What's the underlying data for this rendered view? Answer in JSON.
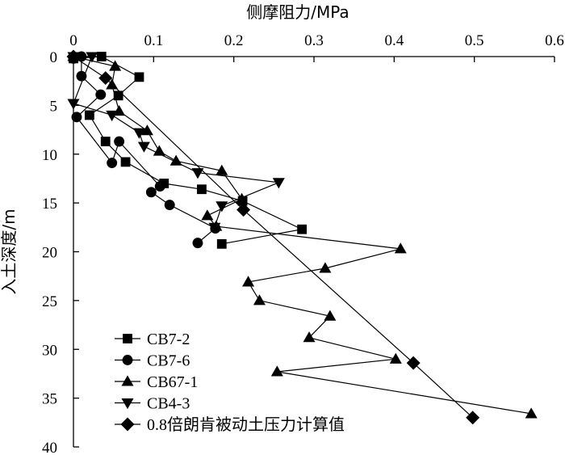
{
  "chart_data": {
    "type": "line",
    "title": "",
    "xlabel": "侧摩阻力/MPa",
    "ylabel": "入土深度/m",
    "xlim": [
      0,
      0.6
    ],
    "ylim": [
      0,
      40
    ],
    "y_inverted": true,
    "x_ticks": [
      "0",
      "0.1",
      "0.2",
      "0.3",
      "0.4",
      "0.5",
      "0.6"
    ],
    "x_tick_values": [
      0,
      0.1,
      0.2,
      0.3,
      0.4,
      0.5,
      0.6
    ],
    "y_ticks": [
      "0",
      "5",
      "10",
      "15",
      "20",
      "25",
      "30",
      "35",
      "40"
    ],
    "y_tick_values": [
      0,
      5,
      10,
      15,
      20,
      25,
      30,
      35,
      40
    ],
    "x_axis_position": "top",
    "legend_position": "bottom-left",
    "series": [
      {
        "name": "CB7-2",
        "marker": "square",
        "points": [
          [
            0.0,
            0.2
          ],
          [
            0.035,
            0.0
          ],
          [
            0.082,
            2.1
          ],
          [
            0.056,
            4.0
          ],
          [
            0.02,
            6.0
          ],
          [
            0.04,
            8.7
          ],
          [
            0.065,
            10.8
          ],
          [
            0.113,
            13.0
          ],
          [
            0.16,
            13.6
          ],
          [
            0.211,
            14.8
          ],
          [
            0.285,
            17.7
          ],
          [
            0.185,
            19.2
          ]
        ]
      },
      {
        "name": "CB7-6",
        "marker": "circle",
        "points": [
          [
            0.0,
            0.2
          ],
          [
            0.01,
            0.0
          ],
          [
            0.01,
            2.0
          ],
          [
            0.034,
            3.9
          ],
          [
            0.004,
            6.2
          ],
          [
            0.048,
            10.9
          ],
          [
            0.057,
            8.7
          ],
          [
            0.108,
            13.3
          ],
          [
            0.097,
            13.9
          ],
          [
            0.12,
            15.2
          ],
          [
            0.177,
            17.6
          ],
          [
            0.155,
            19.1
          ]
        ]
      },
      {
        "name": "CB67-1",
        "marker": "triangle-up",
        "points": [
          [
            0.0,
            0.0
          ],
          [
            0.052,
            1.0
          ],
          [
            0.048,
            2.9
          ],
          [
            0.057,
            5.6
          ],
          [
            0.092,
            7.6
          ],
          [
            0.107,
            9.7
          ],
          [
            0.128,
            10.7
          ],
          [
            0.185,
            11.7
          ],
          [
            0.21,
            14.6
          ],
          [
            0.167,
            16.3
          ],
          [
            0.178,
            17.4
          ],
          [
            0.408,
            19.7
          ],
          [
            0.314,
            21.7
          ],
          [
            0.218,
            23.1
          ],
          [
            0.232,
            25.0
          ],
          [
            0.32,
            26.6
          ],
          [
            0.294,
            28.8
          ],
          [
            0.402,
            31.0
          ],
          [
            0.254,
            32.3
          ],
          [
            0.571,
            36.6
          ]
        ]
      },
      {
        "name": "CB4-3",
        "marker": "triangle-down",
        "points": [
          [
            0.0,
            0.0
          ],
          [
            0.023,
            0.0
          ],
          [
            0.0,
            4.8
          ],
          [
            0.048,
            6.0
          ],
          [
            0.082,
            7.8
          ],
          [
            0.088,
            9.2
          ],
          [
            0.155,
            11.9
          ],
          [
            0.256,
            12.9
          ],
          [
            0.185,
            15.3
          ],
          [
            0.176,
            17.5
          ]
        ]
      },
      {
        "name": "0.8倍朗肯被动土压力计算值",
        "marker": "diamond",
        "points": [
          [
            0.0,
            0.0
          ],
          [
            0.04,
            2.2
          ],
          [
            0.212,
            15.7
          ],
          [
            0.424,
            31.4
          ],
          [
            0.498,
            37.0
          ]
        ]
      }
    ]
  }
}
